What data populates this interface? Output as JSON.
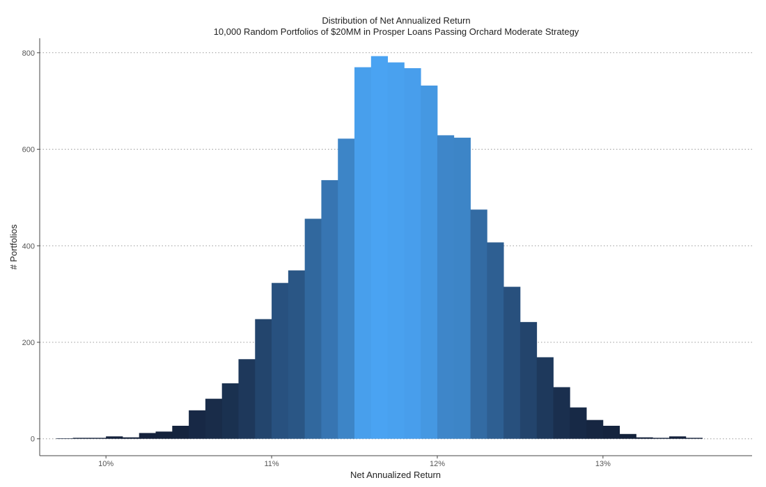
{
  "chart_data": {
    "type": "bar",
    "title": "Distribution of Net Annualized Return",
    "subtitle": "10,000 Random Portfolios of $20MM in Prosper Loans Passing Orchard Moderate Strategy",
    "xlabel": "Net Annualized Return",
    "ylabel": "# Portfolios",
    "xlim": [
      9.6,
      13.9
    ],
    "ylim": [
      -35,
      830
    ],
    "x_ticks": [
      {
        "value": 10,
        "label": "10%"
      },
      {
        "value": 11,
        "label": "11%"
      },
      {
        "value": 12,
        "label": "12%"
      },
      {
        "value": 13,
        "label": "13%"
      }
    ],
    "y_ticks": [
      {
        "value": 0,
        "label": "0"
      },
      {
        "value": 200,
        "label": "200"
      },
      {
        "value": 400,
        "label": "400"
      },
      {
        "value": 600,
        "label": "600"
      },
      {
        "value": 800,
        "label": "800"
      }
    ],
    "grid": "horizontal dotted",
    "bin_width": 0.1,
    "bin_starts": [
      9.7,
      9.8,
      9.9,
      10.0,
      10.1,
      10.2,
      10.3,
      10.4,
      10.5,
      10.6,
      10.7,
      10.8,
      10.9,
      11.0,
      11.1,
      11.2,
      11.3,
      11.4,
      11.5,
      11.6,
      11.7,
      11.8,
      11.9,
      12.0,
      12.1,
      12.2,
      12.3,
      12.4,
      12.5,
      12.6,
      12.7,
      12.8,
      12.9,
      13.0,
      13.1,
      13.2,
      13.3,
      13.4,
      13.5
    ],
    "values": [
      1,
      2,
      2,
      5,
      3,
      12,
      15,
      27,
      59,
      83,
      115,
      165,
      248,
      323,
      349,
      456,
      536,
      622,
      770,
      793,
      780,
      768,
      732,
      629,
      624,
      475,
      407,
      315,
      242,
      169,
      107,
      65,
      39,
      27,
      10,
      3,
      2,
      5,
      2
    ],
    "color_low": "#14213a",
    "color_high": "#4aa3f2"
  }
}
